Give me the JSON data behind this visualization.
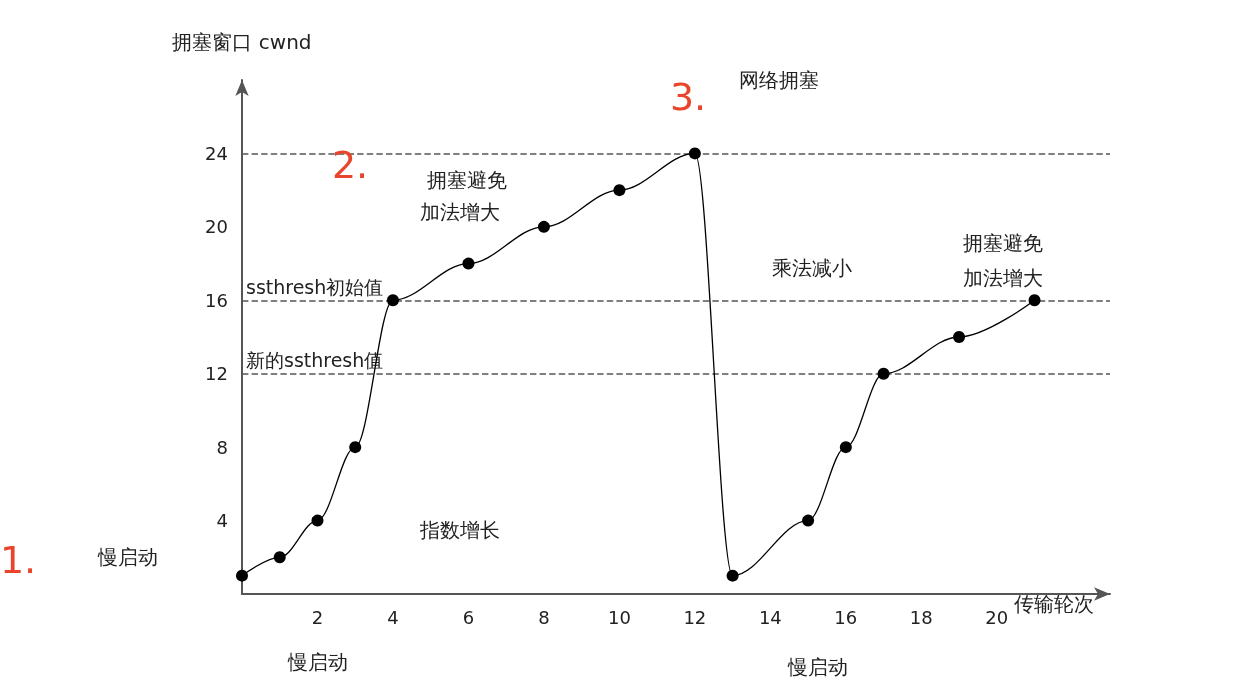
{
  "chart_data": {
    "type": "line",
    "xlabel": "传输轮次",
    "ylabel": "拥塞窗口 cwnd",
    "x": [
      0,
      1,
      2,
      3,
      4,
      6,
      8,
      10,
      12,
      13,
      15,
      16,
      17,
      19,
      21
    ],
    "series": [
      {
        "color": "#000000",
        "values": [
          1,
          2,
          4,
          8,
          16,
          18,
          20,
          22,
          24,
          1,
          4,
          8,
          12,
          14,
          16
        ]
      }
    ],
    "xlim": [
      0,
      23
    ],
    "xticks": [
      2,
      4,
      6,
      8,
      10,
      12,
      14,
      16,
      18,
      20
    ],
    "ylim": [
      0,
      28
    ],
    "yticks": [
      4,
      8,
      12,
      16,
      20,
      24
    ],
    "marker": "circle",
    "grid": false,
    "ref_lines": [
      {
        "axis": "y",
        "value": 24,
        "label": null,
        "color": "#555555",
        "line_style": "dashed"
      },
      {
        "axis": "y",
        "value": 16,
        "label": "ssthresh初始值",
        "color": "#555555",
        "line_style": "dashed"
      },
      {
        "axis": "y",
        "value": 12,
        "label": "新的ssthresh值",
        "color": "#555555",
        "line_style": "dashed"
      }
    ],
    "annotations": [
      "1.",
      "慢启动",
      "2.",
      "拥塞避免",
      "加法增大",
      "3.",
      "网络拥塞",
      "指数增长",
      "乘法减小",
      "拥塞避免",
      "加法增大",
      "慢启动",
      "慢启动"
    ]
  }
}
